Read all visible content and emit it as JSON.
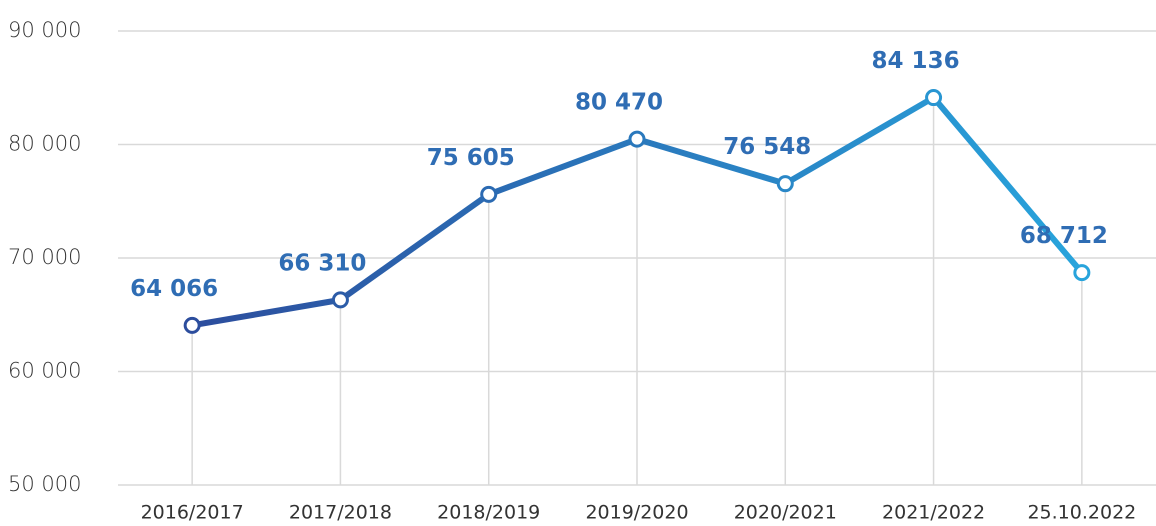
{
  "chart_data": {
    "type": "line",
    "categories": [
      "2016/2017",
      "2017/2018",
      "2018/2019",
      "2019/2020",
      "2020/2021",
      "2021/2022",
      "25.10.2022"
    ],
    "values": [
      64066,
      66310,
      75605,
      80470,
      76548,
      84136,
      68712
    ],
    "value_labels": [
      "64 066",
      "66 310",
      "75 605",
      "80 470",
      "76 548",
      "84 136",
      "68 712"
    ],
    "gradient": [
      "#2c4d9d",
      "#28a4dc"
    ],
    "label_color": "#2f6db4",
    "ylim": [
      50000,
      90000
    ],
    "yticks": [
      {
        "value": 50000,
        "label": "50 000"
      },
      {
        "value": 60000,
        "label": "60 000"
      },
      {
        "value": 70000,
        "label": "70 000"
      },
      {
        "value": 80000,
        "label": "80 000"
      },
      {
        "value": 90000,
        "label": "90 000"
      }
    ],
    "grid": true
  }
}
